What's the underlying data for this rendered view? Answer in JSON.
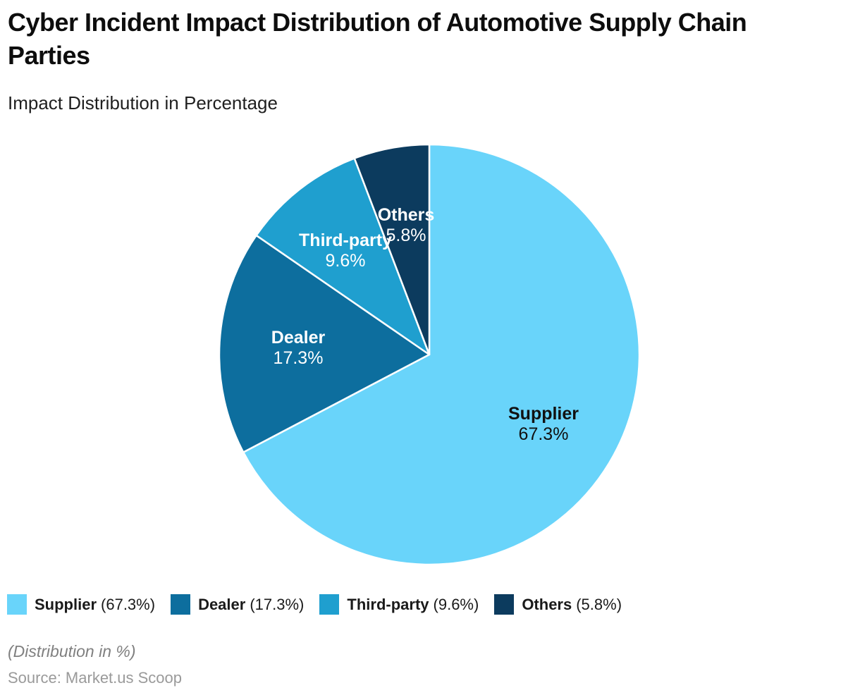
{
  "header": {
    "title": "Cyber Incident Impact Distribution of Automotive Supply Chain Parties",
    "subtitle": "Impact Distribution in Percentage"
  },
  "chart_data": {
    "type": "pie",
    "title": "Cyber Incident Impact Distribution of Automotive Supply Chain Parties",
    "subtitle": "Impact Distribution in Percentage",
    "unit": "%",
    "direction": "clockwise",
    "start_angle_deg": 0,
    "legend_position": "bottom",
    "slices": [
      {
        "label": "Supplier",
        "value": 67.3,
        "pct_label": "67.3%",
        "legend_pct": "(67.3%)",
        "color": "#69D4FA",
        "text_color": "#111111"
      },
      {
        "label": "Dealer",
        "value": 17.3,
        "pct_label": "17.3%",
        "legend_pct": "(17.3%)",
        "color": "#0D6E9E",
        "text_color": "#FFFFFF"
      },
      {
        "label": "Third-party",
        "value": 9.6,
        "pct_label": "9.6%",
        "legend_pct": "(9.6%)",
        "color": "#1F9FCF",
        "text_color": "#FFFFFF"
      },
      {
        "label": "Others",
        "value": 5.8,
        "pct_label": "5.8%",
        "legend_pct": "(5.8%)",
        "color": "#0C3B5E",
        "text_color": "#FFFFFF"
      }
    ]
  },
  "footer": {
    "note": "(Distribution in %)",
    "source": "Source: Market.us Scoop"
  }
}
